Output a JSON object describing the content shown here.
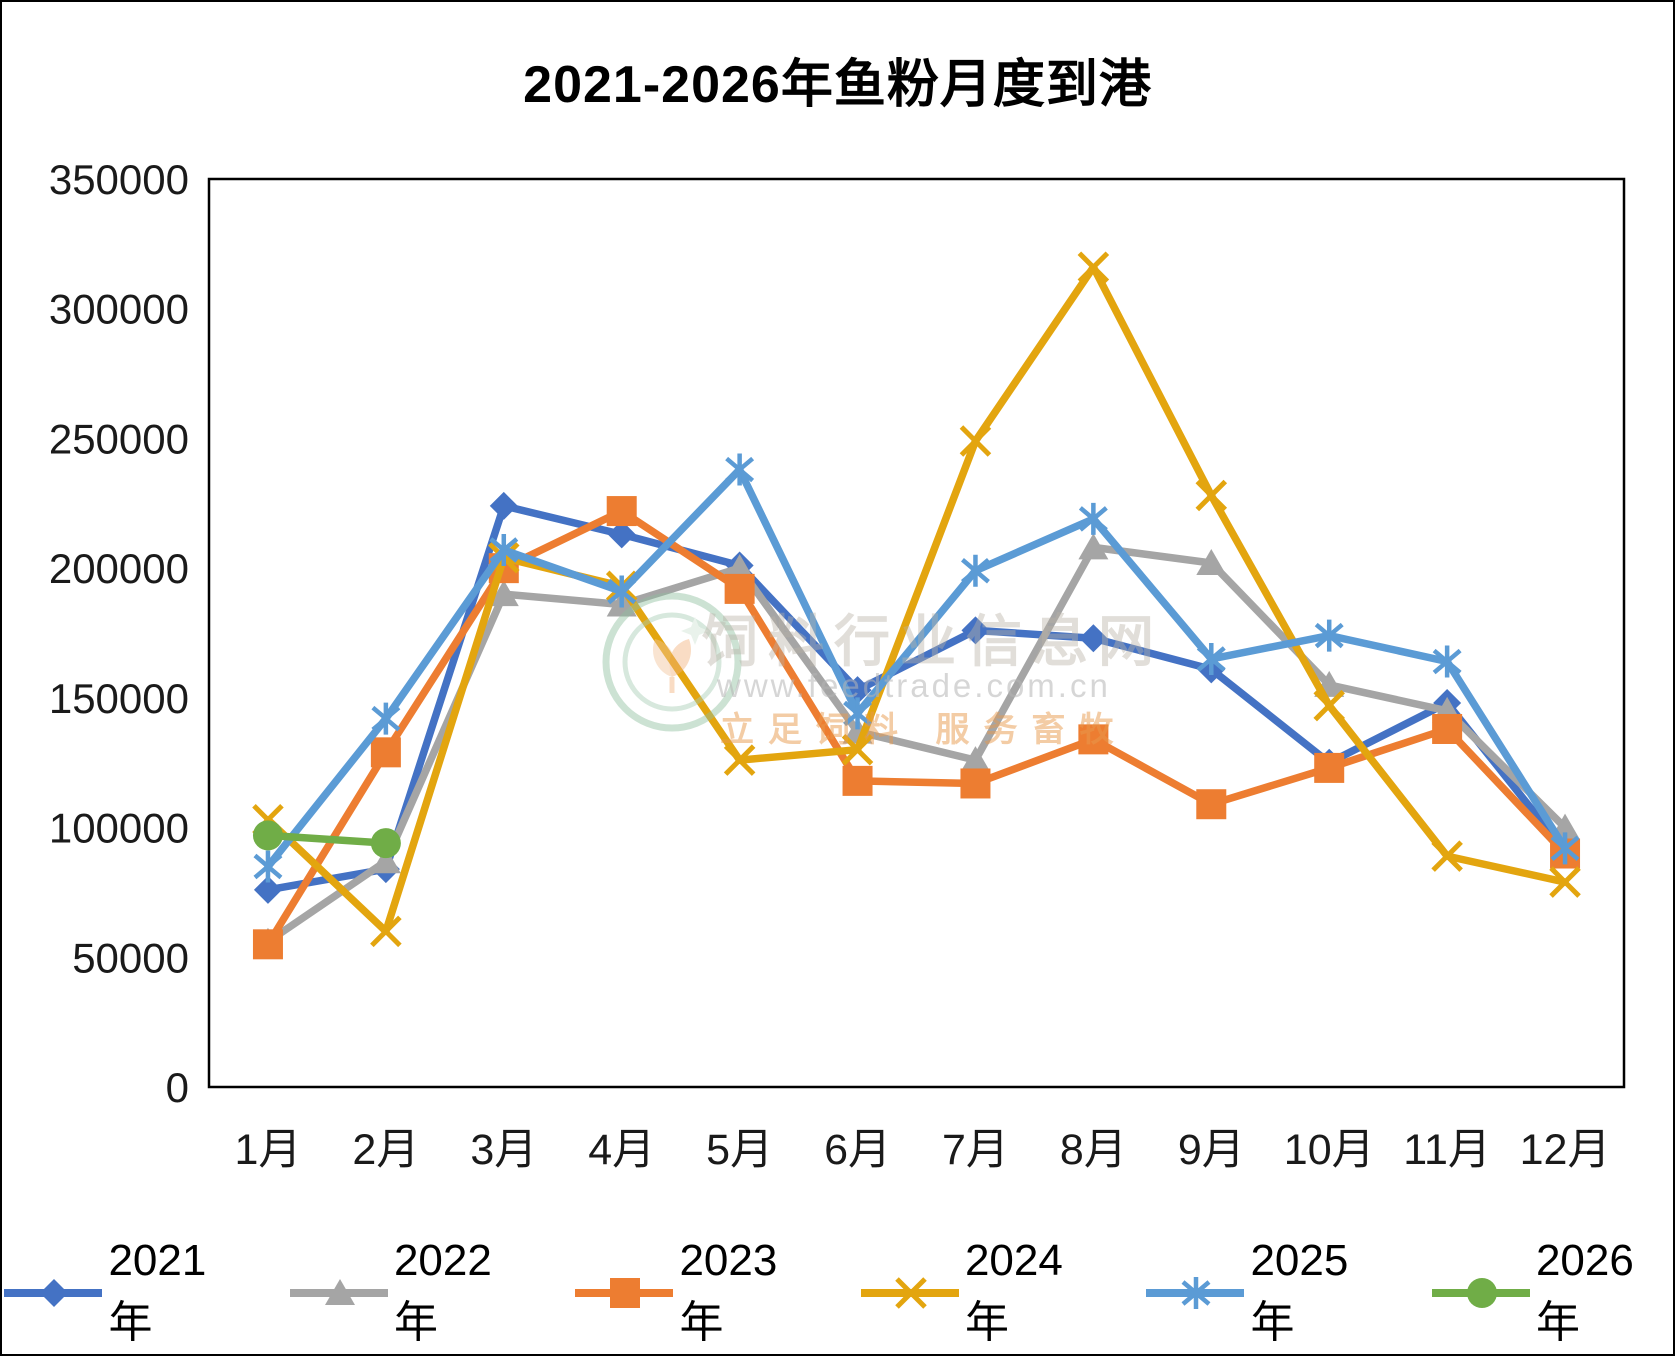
{
  "chart_data": {
    "type": "line",
    "title": "2021-2026年鱼粉月度到港",
    "categories": [
      "1月",
      "2月",
      "3月",
      "4月",
      "5月",
      "6月",
      "7月",
      "8月",
      "9月",
      "10月",
      "11月",
      "12月"
    ],
    "y_ticks": [
      0,
      50000,
      100000,
      150000,
      200000,
      250000,
      300000,
      350000
    ],
    "ylim": [
      0,
      350000
    ],
    "grid": false,
    "legend_position": "bottom",
    "series": [
      {
        "name": "2021年",
        "color": "#4472C4",
        "marker": "diamond",
        "values": [
          76000,
          84000,
          224000,
          213000,
          201000,
          153000,
          176000,
          173000,
          161000,
          125000,
          148000,
          91000
        ]
      },
      {
        "name": "2022年",
        "color": "#A5A5A5",
        "marker": "triangle",
        "values": [
          56000,
          87000,
          190000,
          186000,
          200000,
          137000,
          126000,
          208000,
          202000,
          155000,
          145000,
          100000
        ]
      },
      {
        "name": "2023年",
        "color": "#ED7D31",
        "marker": "square",
        "values": [
          55000,
          129000,
          200000,
          222000,
          192000,
          118000,
          117000,
          134000,
          109000,
          123000,
          138000,
          90000
        ]
      },
      {
        "name": "2024年",
        "color": "#E3A50F",
        "marker": "x",
        "values": [
          103000,
          60000,
          204000,
          193000,
          126000,
          130000,
          249000,
          316000,
          228000,
          147000,
          89000,
          79000
        ]
      },
      {
        "name": "2025年",
        "color": "#5B9BD5",
        "marker": "asterisk",
        "values": [
          85000,
          142000,
          207000,
          191000,
          238000,
          144000,
          199000,
          219000,
          165000,
          174000,
          164000,
          92000
        ]
      },
      {
        "name": "2026年",
        "color": "#70AD47",
        "marker": "circle",
        "values": [
          97000,
          94000,
          null,
          null,
          null,
          null,
          null,
          null,
          null,
          null,
          null,
          null
        ]
      }
    ]
  },
  "watermark": {
    "line1": "饲料行业信息网",
    "line2": "www.feedtrade.com.cn",
    "line3": "立足饲料  服务畜牧"
  }
}
